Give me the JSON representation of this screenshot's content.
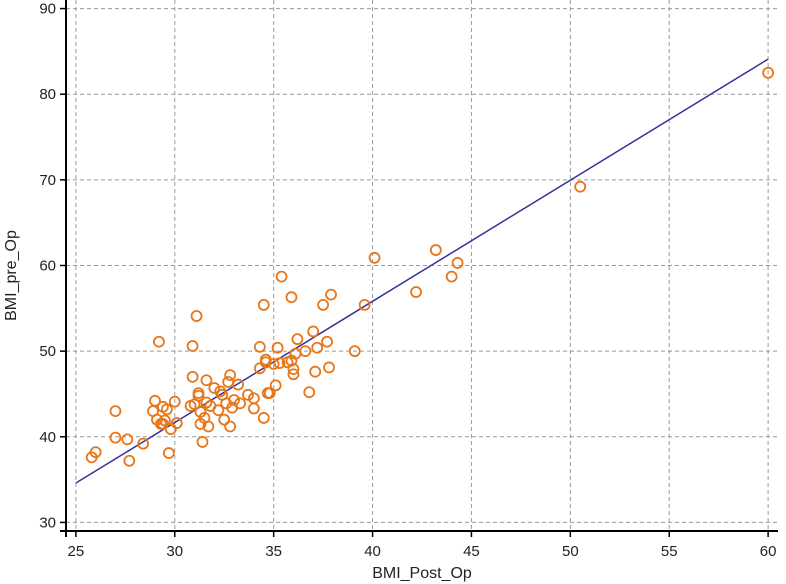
{
  "chart_data": {
    "type": "scatter",
    "title": "",
    "xlabel": "BMI_Post_Op",
    "ylabel": "BMI_pre_Op",
    "xlim": [
      24.5,
      60.5
    ],
    "ylim": [
      29,
      91
    ],
    "xticks": [
      25,
      30,
      35,
      40,
      45,
      50,
      55,
      60
    ],
    "yticks": [
      30,
      40,
      50,
      60,
      70,
      80,
      90
    ],
    "grid": true,
    "point_color": "#e8761a",
    "line_color": "#33339a",
    "regression_line": {
      "x": [
        25,
        60
      ],
      "y": [
        34.6,
        84.1
      ]
    },
    "points": [
      [
        25.8,
        37.6
      ],
      [
        26.0,
        38.2
      ],
      [
        27.0,
        43.0
      ],
      [
        27.0,
        39.9
      ],
      [
        27.6,
        39.7
      ],
      [
        27.7,
        37.2
      ],
      [
        28.4,
        39.2
      ],
      [
        28.9,
        43.0
      ],
      [
        29.0,
        44.2
      ],
      [
        29.1,
        42.0
      ],
      [
        29.2,
        51.1
      ],
      [
        29.3,
        41.5
      ],
      [
        29.4,
        41.5
      ],
      [
        29.4,
        43.5
      ],
      [
        29.5,
        41.9
      ],
      [
        29.6,
        43.2
      ],
      [
        29.7,
        38.1
      ],
      [
        29.8,
        40.9
      ],
      [
        30.0,
        44.1
      ],
      [
        30.1,
        41.6
      ],
      [
        30.8,
        43.6
      ],
      [
        30.9,
        47.0
      ],
      [
        30.9,
        50.6
      ],
      [
        31.0,
        43.8
      ],
      [
        31.1,
        54.1
      ],
      [
        31.2,
        44.8
      ],
      [
        31.2,
        45.1
      ],
      [
        31.3,
        42.9
      ],
      [
        31.3,
        41.5
      ],
      [
        31.4,
        39.4
      ],
      [
        31.5,
        42.2
      ],
      [
        31.6,
        44.0
      ],
      [
        31.6,
        46.6
      ],
      [
        31.7,
        41.2
      ],
      [
        31.8,
        43.6
      ],
      [
        32.0,
        45.7
      ],
      [
        32.2,
        43.1
      ],
      [
        32.3,
        45.3
      ],
      [
        32.4,
        44.9
      ],
      [
        32.5,
        42.0
      ],
      [
        32.6,
        43.9
      ],
      [
        32.7,
        46.4
      ],
      [
        32.8,
        47.2
      ],
      [
        32.8,
        41.2
      ],
      [
        32.9,
        43.4
      ],
      [
        33.0,
        44.3
      ],
      [
        33.2,
        46.1
      ],
      [
        33.3,
        43.9
      ],
      [
        33.7,
        44.9
      ],
      [
        34.0,
        43.3
      ],
      [
        34.0,
        44.5
      ],
      [
        34.3,
        50.5
      ],
      [
        34.3,
        48.0
      ],
      [
        34.5,
        55.4
      ],
      [
        34.5,
        42.2
      ],
      [
        34.6,
        48.7
      ],
      [
        34.6,
        49.0
      ],
      [
        34.7,
        45.1
      ],
      [
        34.8,
        45.1
      ],
      [
        35.0,
        48.5
      ],
      [
        35.1,
        46.0
      ],
      [
        35.2,
        50.4
      ],
      [
        35.3,
        48.6
      ],
      [
        35.4,
        58.7
      ],
      [
        35.7,
        48.7
      ],
      [
        35.9,
        56.3
      ],
      [
        35.9,
        48.9
      ],
      [
        36.0,
        47.3
      ],
      [
        36.0,
        47.9
      ],
      [
        36.1,
        49.7
      ],
      [
        36.2,
        51.4
      ],
      [
        36.6,
        50.0
      ],
      [
        36.8,
        45.2
      ],
      [
        37.0,
        52.3
      ],
      [
        37.1,
        47.6
      ],
      [
        37.2,
        50.4
      ],
      [
        37.5,
        55.4
      ],
      [
        37.7,
        51.1
      ],
      [
        37.8,
        48.1
      ],
      [
        37.9,
        56.6
      ],
      [
        39.1,
        50.0
      ],
      [
        39.6,
        55.4
      ],
      [
        40.1,
        60.9
      ],
      [
        42.2,
        56.9
      ],
      [
        43.2,
        61.8
      ],
      [
        44.0,
        58.7
      ],
      [
        44.3,
        60.3
      ],
      [
        50.5,
        69.2
      ],
      [
        60.0,
        82.5
      ]
    ]
  }
}
